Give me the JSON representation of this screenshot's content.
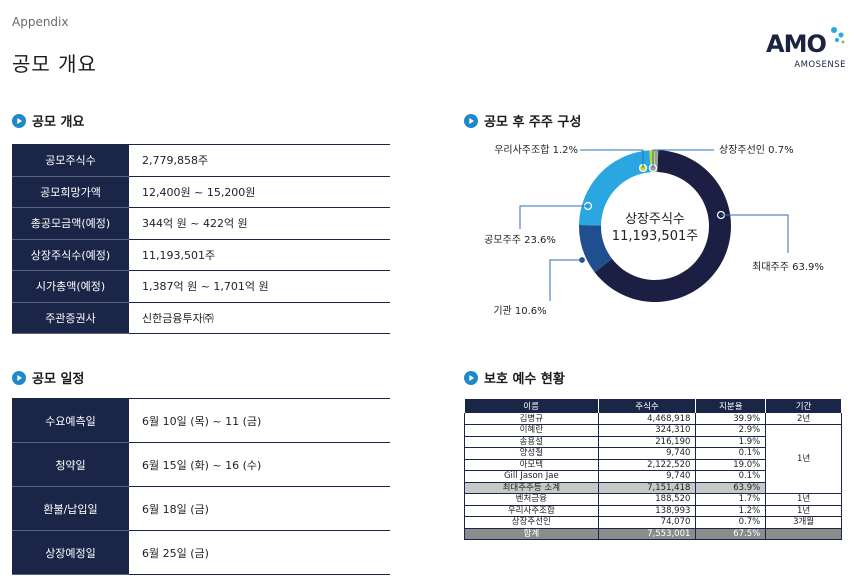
{
  "header": {
    "appendix": "Appendix",
    "title": "공모 개요"
  },
  "logo": {
    "word": "AMO",
    "sub": "AMOSENSE"
  },
  "offering": {
    "heading": "공모 개요",
    "rows": [
      {
        "label": "공모주식수",
        "value": "2,779,858주"
      },
      {
        "label": "공모희망가액",
        "value": "12,400원 ~ 15,200원"
      },
      {
        "label": "총공모금액(예정)",
        "value": "344억 원 ~ 422억 원"
      },
      {
        "label": "상장주식수(예정)",
        "value": "11,193,501주"
      },
      {
        "label": "시가총액(예정)",
        "value": "1,387억 원 ~ 1,701억 원"
      },
      {
        "label": "주관증권사",
        "value": "신한금융투자㈜"
      }
    ]
  },
  "schedule": {
    "heading": "공모 일정",
    "rows": [
      {
        "label": "수요예측일",
        "value": "6월 10일 (목) ~ 11 (금)"
      },
      {
        "label": "청약일",
        "value": "6월 15일 (화) ~ 16 (수)"
      },
      {
        "label": "환불/납입일",
        "value": "6월 18일 (금)"
      },
      {
        "label": "상장예정일",
        "value": "6월 25일 (금)"
      }
    ]
  },
  "shareholders": {
    "heading": "공모 후 주주 구성",
    "center_label": "상장주식수",
    "center_value": "11,193,501주",
    "colors": {
      "navy": "#1b1f44",
      "blue": "#1f4f8e",
      "sky": "#2aa7e0",
      "lime": "#c7d33a",
      "gray": "#9aa0a8"
    },
    "labels": {
      "largest": "최대주주 63.9%",
      "inst": "기관 10.6%",
      "public": "공모주주 23.6%",
      "union": "우리사주조합 1.2%",
      "listing": "상장주선인 0.7%"
    }
  },
  "chart_data": {
    "type": "pie",
    "categories": [
      "최대주주",
      "기관",
      "공모주주",
      "우리사주조합",
      "상장주선인"
    ],
    "values": [
      63.9,
      10.6,
      23.6,
      1.2,
      0.7
    ]
  },
  "lockup": {
    "heading": "보호 예수 현황",
    "columns": [
      "이름",
      "주식수",
      "지분율",
      "기간"
    ],
    "rows": [
      {
        "name": "김병규",
        "shares": "4,468,918",
        "pct": "39.9%",
        "period": "2년"
      },
      {
        "name": "이혜란",
        "shares": "324,310",
        "pct": "2.9%",
        "period": ""
      },
      {
        "name": "송용설",
        "shares": "216,190",
        "pct": "1.9%",
        "period": ""
      },
      {
        "name": "양성철",
        "shares": "9,740",
        "pct": "0.1%",
        "period": "1년"
      },
      {
        "name": "아모텍",
        "shares": "2,122,520",
        "pct": "19.0%",
        "period": ""
      },
      {
        "name": "Gill Jason Jae",
        "shares": "9,740",
        "pct": "0.1%",
        "period": ""
      },
      {
        "name": "최대주주등 소계",
        "shares": "7,151,418",
        "pct": "63.9%",
        "period": ""
      },
      {
        "name": "벤처금융",
        "shares": "188,520",
        "pct": "1.7%",
        "period": "1년"
      },
      {
        "name": "우리사주조합",
        "shares": "138,993",
        "pct": "1.2%",
        "period": "1년"
      },
      {
        "name": "상장주선인",
        "shares": "74,070",
        "pct": "0.7%",
        "period": "3개월"
      },
      {
        "name": "합계",
        "shares": "7,553,001",
        "pct": "67.5%",
        "period": ""
      }
    ]
  }
}
